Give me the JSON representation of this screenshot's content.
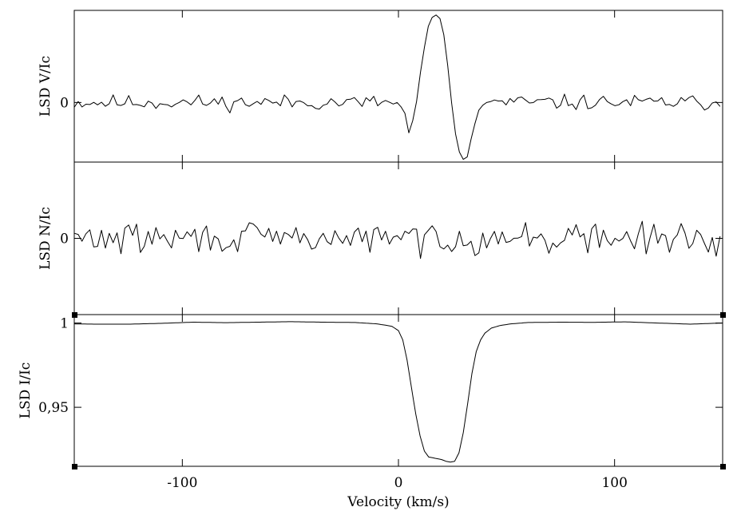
{
  "chart_data": {
    "type": "line",
    "x_range": [
      -150,
      150
    ],
    "x_ticks": [
      -100,
      0,
      100
    ],
    "x_tick_labels": [
      "-100",
      "0",
      "100"
    ],
    "xlabel": "Velocity (km/s)",
    "grid": false,
    "panels": [
      {
        "id": "stokes-v",
        "ylabel": "LSD V/Ic",
        "y_range": [
          -1.1,
          1.7
        ],
        "y_ticks": [
          0
        ],
        "y_tick_labels": [
          "0"
        ],
        "noise_amplitude": 0.07,
        "noise_seed": 11,
        "x": [
          -150,
          0,
          3,
          5,
          8,
          11,
          14,
          16,
          18,
          20,
          22,
          24,
          26,
          28,
          30,
          32,
          34,
          37,
          40,
          150
        ],
        "y": [
          0,
          0,
          -0.2,
          -0.6,
          -0.1,
          0.8,
          1.45,
          1.6,
          1.62,
          1.5,
          1.0,
          0.2,
          -0.5,
          -0.9,
          -1.05,
          -1.0,
          -0.6,
          -0.15,
          0,
          0
        ]
      },
      {
        "id": "null-n",
        "ylabel": "LSD N/Ic",
        "y_range": [
          -1,
          1
        ],
        "y_ticks": [
          0
        ],
        "y_tick_labels": [
          "0"
        ],
        "noise_amplitude": 0.1,
        "noise_seed": 29,
        "x": [
          -150,
          150
        ],
        "y": [
          0,
          0
        ]
      },
      {
        "id": "stokes-i",
        "ylabel": "LSD I/Ic",
        "y_range": [
          0.915,
          1.005
        ],
        "y_ticks": [
          1,
          0.95
        ],
        "y_tick_labels": [
          "1",
          "0,95"
        ],
        "noise_amplitude": 0,
        "noise_seed": 0,
        "x": [
          -150,
          -140,
          -125,
          -110,
          -95,
          -80,
          -65,
          -50,
          -35,
          -20,
          -10,
          -5,
          -3,
          0,
          2,
          4,
          6,
          8,
          10,
          12,
          14,
          16,
          18,
          20,
          22,
          24,
          26,
          28,
          30,
          32,
          34,
          36,
          38,
          40,
          43,
          47,
          52,
          60,
          75,
          90,
          105,
          120,
          135,
          150
        ],
        "y": [
          0.9995,
          0.9993,
          0.9993,
          0.9998,
          1.0005,
          1.0002,
          1.0005,
          1.0008,
          1.0005,
          1.0003,
          0.9995,
          0.9985,
          0.998,
          0.9955,
          0.99,
          0.978,
          0.962,
          0.946,
          0.933,
          0.924,
          0.9205,
          0.92,
          0.9195,
          0.919,
          0.918,
          0.9175,
          0.918,
          0.923,
          0.935,
          0.952,
          0.97,
          0.983,
          0.99,
          0.994,
          0.997,
          0.9985,
          0.9995,
          1.0003,
          1.0005,
          1.0004,
          1.0007,
          1.0,
          0.9993,
          1.0
        ]
      }
    ]
  }
}
